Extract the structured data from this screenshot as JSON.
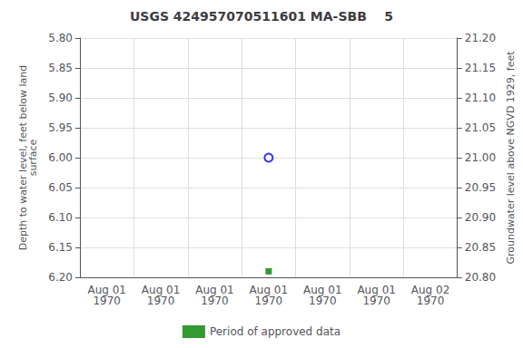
{
  "chart_data": {
    "type": "scatter",
    "title": "USGS 424957070511601 MA-SBB    5",
    "ylabel": "Depth to water level, feet below land\nsurface",
    "y2label": "Groundwater level above NGVD 1929, feet",
    "categories": [
      "Aug 01\n1970",
      "Aug 01\n1970",
      "Aug 01\n1970",
      "Aug 01\n1970",
      "Aug 01\n1970",
      "Aug 01\n1970",
      "Aug 02\n1970"
    ],
    "ylim": [
      6.2,
      5.8
    ],
    "yticks": [
      {
        "value": 5.8,
        "label": "5.80"
      },
      5.85,
      {
        "value": 5.9,
        "label": "5.90"
      },
      5.95,
      {
        "value": 6.0,
        "label": "6.00"
      },
      6.05,
      {
        "value": 6.1,
        "label": "6.10"
      },
      6.15,
      {
        "value": 6.2,
        "label": "6.20"
      }
    ],
    "y2lim": [
      20.8,
      21.2
    ],
    "y2ticks": [
      {
        "value": 21.2,
        "label": "21.20"
      },
      21.15,
      {
        "value": 21.1,
        "label": "21.10"
      },
      21.05,
      {
        "value": 21.0,
        "label": "21.00"
      },
      20.95,
      {
        "value": 20.9,
        "label": "20.90"
      },
      20.85,
      {
        "value": 20.8,
        "label": "20.80"
      }
    ],
    "grid": true,
    "legend": "bottom",
    "series": [
      {
        "color": "#0000ff",
        "marker": "hollow_circle",
        "values": [
          null,
          null,
          null,
          6.0,
          null,
          null,
          null
        ]
      },
      {
        "name": "Period of approved data",
        "color": "#008000",
        "marker": "square",
        "values": [
          null,
          null,
          null,
          6.19,
          null,
          null,
          null
        ]
      }
    ]
  }
}
